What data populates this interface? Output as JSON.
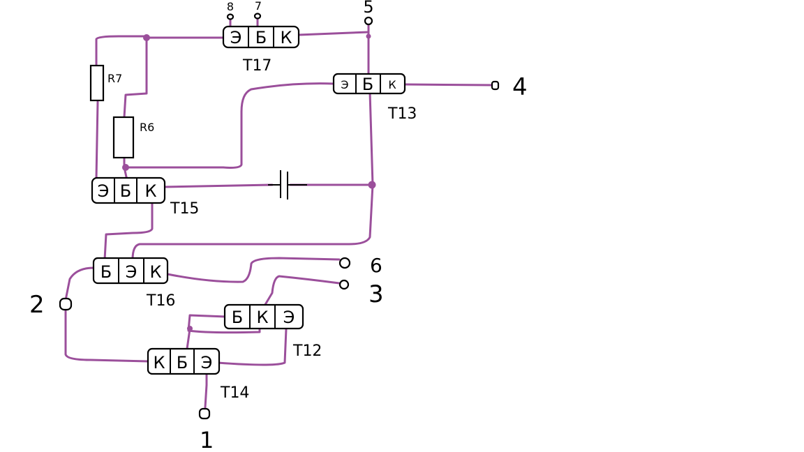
{
  "transistors": [
    {
      "id": "t17",
      "name": "T17",
      "pins": [
        "Э",
        "Б",
        "К"
      ]
    },
    {
      "id": "t13",
      "name": "T13",
      "pins": [
        "Э",
        "Б",
        "К"
      ]
    },
    {
      "id": "t15",
      "name": "T15",
      "pins": [
        "Э",
        "Б",
        "К"
      ]
    },
    {
      "id": "t16",
      "name": "T16",
      "pins": [
        "Б",
        "Э",
        "К"
      ]
    },
    {
      "id": "t12",
      "name": "T12",
      "pins": [
        "Б",
        "К",
        "Э"
      ]
    },
    {
      "id": "t14",
      "name": "T14",
      "pins": [
        "К",
        "Б",
        "Э"
      ]
    }
  ],
  "resistors": [
    {
      "id": "r7",
      "name": "R7"
    },
    {
      "id": "r6",
      "name": "R6"
    }
  ],
  "terminals": {
    "t8": "8",
    "t7": "7",
    "t5": "5",
    "t4": "4",
    "t6": "6",
    "t3": "3",
    "t2": "2",
    "t1": "1"
  },
  "colors": {
    "wire": "#9b4f9b",
    "outline": "#000000",
    "background": "#ffffff"
  }
}
